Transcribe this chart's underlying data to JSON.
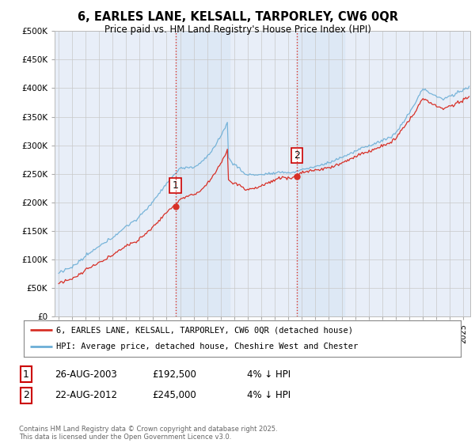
{
  "title": "6, EARLES LANE, KELSALL, TARPORLEY, CW6 0QR",
  "subtitle": "Price paid vs. HM Land Registry's House Price Index (HPI)",
  "ylim": [
    0,
    500000
  ],
  "yticks": [
    0,
    50000,
    100000,
    150000,
    200000,
    250000,
    300000,
    350000,
    400000,
    450000,
    500000
  ],
  "hpi_color": "#6baed6",
  "price_color": "#d73027",
  "sale1_date": 2003.65,
  "sale1_price": 192500,
  "sale2_date": 2012.65,
  "sale2_price": 245000,
  "vline_color": "#d73027",
  "shaded_color": "#ddeeff",
  "legend1_label": "6, EARLES LANE, KELSALL, TARPORLEY, CW6 0QR (detached house)",
  "legend2_label": "HPI: Average price, detached house, Cheshire West and Chester",
  "footnote": "Contains HM Land Registry data © Crown copyright and database right 2025.\nThis data is licensed under the Open Government Licence v3.0.",
  "table_rows": [
    [
      "1",
      "26-AUG-2003",
      "£192,500",
      "4% ↓ HPI"
    ],
    [
      "2",
      "22-AUG-2012",
      "£245,000",
      "4% ↓ HPI"
    ]
  ],
  "background_color": "#ffffff",
  "plot_bg_color": "#e8eef8"
}
